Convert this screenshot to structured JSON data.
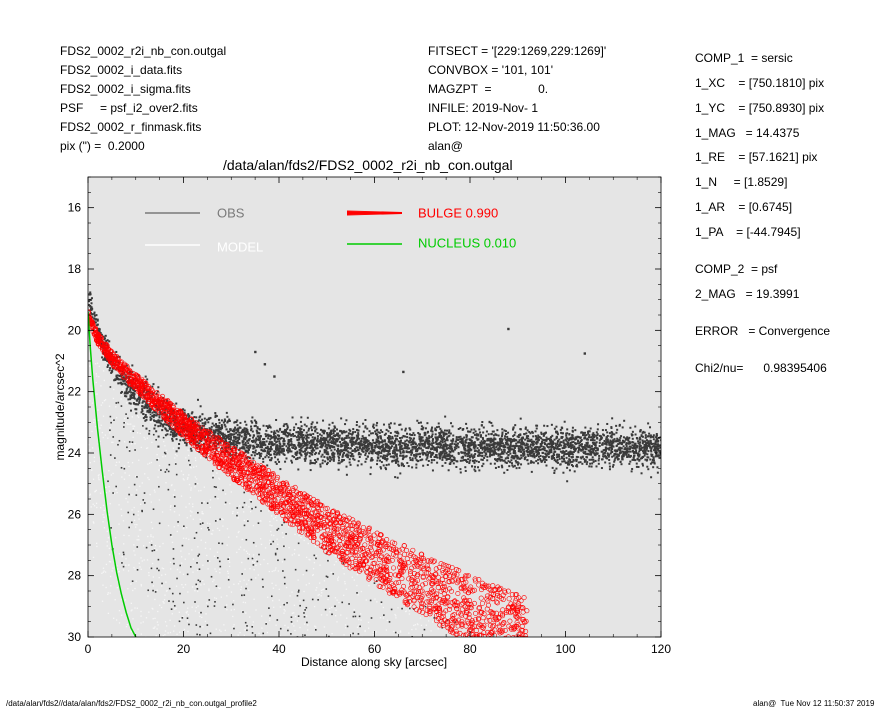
{
  "header_left": [
    "FDS2_0002_r2i_nb_con.outgal",
    "FDS2_0002_i_data.fits",
    "FDS2_0002_i_sigma.fits",
    "PSF     = psf_i2_over2.fits",
    "FDS2_0002_r_finmask.fits",
    "pix (\") =  0.2000"
  ],
  "header_mid": [
    "FITSECT = '[229:1269,229:1269]'",
    "CONVBOX = '101, 101'",
    "MAGZPT  =              0.",
    "INFILE: 2019-Nov- 1",
    "PLOT: 12-Nov-2019 11:50:36.00",
    "alan@"
  ],
  "right_panel": [
    "COMP_1  = sersic",
    "1_XC    = [750.1810] pix",
    "1_YC    = [750.8930] pix",
    "1_MAG   = 14.4375",
    "1_RE    = [57.1621] pix",
    "1_N     = [1.8529]",
    "1_AR    = [0.6745]",
    "1_PA    = [-44.7945]",
    "COMP_2  = psf",
    "2_MAG   = 19.3991",
    "ERROR   = Convergence",
    "Chi2/nu=      0.98395406"
  ],
  "footer_left": "/data/alan/fds2//data/alan/fds2/FDS2_0002_r2i_nb_con.outgal_profile2",
  "footer_right": "alan@  Tue Nov 12 11:50:37 2019",
  "chart_data": {
    "type": "scatter",
    "title": "/data/alan/fds2/FDS2_0002_r2i_nb_con.outgal",
    "xlabel": "Distance along sky [arcsec]",
    "ylabel": "magnitude/arcsec^2",
    "xlim": [
      0,
      120
    ],
    "ylim": [
      30,
      15
    ],
    "x_ticks": [
      0,
      20,
      40,
      60,
      80,
      100,
      120
    ],
    "y_ticks": [
      16,
      18,
      20,
      22,
      24,
      26,
      28,
      30
    ],
    "background_color": "#e5e5e5",
    "legend": [
      {
        "label": "OBS",
        "color": "#7a7a7a"
      },
      {
        "label": "MODEL",
        "color": "#ffffff"
      },
      {
        "label": "BULGE  0.990",
        "color": "#ff0000"
      },
      {
        "label": "NUCLEUS  0.010",
        "color": "#00cc00"
      }
    ],
    "series": [
      {
        "label": "OBS",
        "color": "#3a3a3a",
        "style": "points",
        "x": [
          0.2,
          1,
          2,
          3,
          4,
          6,
          8,
          10,
          12,
          14,
          16,
          18,
          20,
          24,
          28,
          32,
          36,
          40,
          50,
          60,
          70,
          80,
          90,
          100,
          110,
          120
        ],
        "y": [
          19.0,
          19.6,
          20.1,
          20.5,
          20.8,
          21.3,
          21.7,
          22.0,
          22.3,
          22.6,
          22.8,
          23.0,
          23.1,
          23.3,
          23.45,
          23.55,
          23.6,
          23.65,
          23.7,
          23.75,
          23.75,
          23.8,
          23.8,
          23.8,
          23.8,
          23.85
        ]
      },
      {
        "label": "BULGE  0.990",
        "color": "#ff0000",
        "style": "band",
        "x": [
          0,
          2,
          5,
          10,
          15,
          20,
          30,
          40,
          50,
          60,
          70,
          80,
          92
        ],
        "y": [
          19.5,
          20.25,
          20.9,
          21.7,
          22.4,
          23.1,
          24.3,
          25.4,
          26.5,
          27.4,
          28.3,
          29.1,
          30.0
        ]
      },
      {
        "label": "NUCLEUS  0.010",
        "color": "#00cc00",
        "style": "line",
        "x": [
          0,
          0.5,
          1,
          2,
          3,
          4,
          5,
          6,
          7,
          8,
          9,
          10
        ],
        "y": [
          19.4,
          20.6,
          21.6,
          23.2,
          24.6,
          25.9,
          27.0,
          27.9,
          28.6,
          29.2,
          29.7,
          30.0
        ]
      },
      {
        "label": "OBS outliers",
        "color": "#3a3a3a",
        "style": "isolated-points",
        "x": [
          88,
          104,
          35,
          37,
          66,
          39
        ],
        "y": [
          19.95,
          20.75,
          20.7,
          21.1,
          21.35,
          21.5
        ]
      }
    ]
  }
}
